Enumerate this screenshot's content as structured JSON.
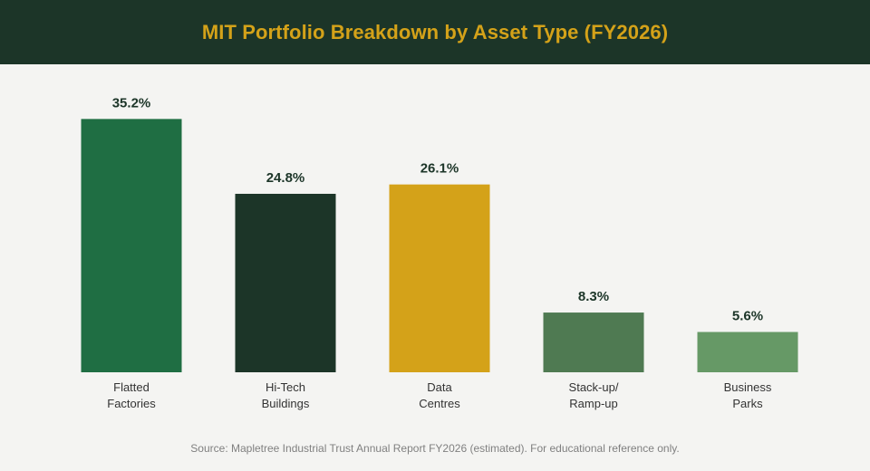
{
  "title": "MIT Portfolio Breakdown by Asset Type (FY2026)",
  "source": "Source: Mapletree Industrial Trust Annual Report FY2026 (estimated). For educational reference only.",
  "colors": {
    "header_bg": "#1c3528",
    "title": "#d4a219",
    "background": "#f4f4f2"
  },
  "chart_data": {
    "type": "bar",
    "title": "MIT Portfolio Breakdown by Asset Type (FY2026)",
    "xlabel": "",
    "ylabel": "",
    "unit": "%",
    "ylim": [
      0,
      36
    ],
    "grid": false,
    "legend": "none",
    "categories": [
      [
        "Flatted",
        "Factories"
      ],
      [
        "Hi-Tech",
        "Buildings"
      ],
      [
        "Data",
        "Centres"
      ],
      [
        "Stack-up/",
        "Ramp-up"
      ],
      [
        "Business",
        "Parks"
      ]
    ],
    "values": [
      35.2,
      24.8,
      26.1,
      8.3,
      5.6
    ],
    "value_labels": [
      "35.2%",
      "24.8%",
      "26.1%",
      "8.3%",
      "5.6%"
    ],
    "bar_colors": [
      "#1f6e43",
      "#1c3528",
      "#d4a219",
      "#4f7a52",
      "#669966"
    ]
  }
}
